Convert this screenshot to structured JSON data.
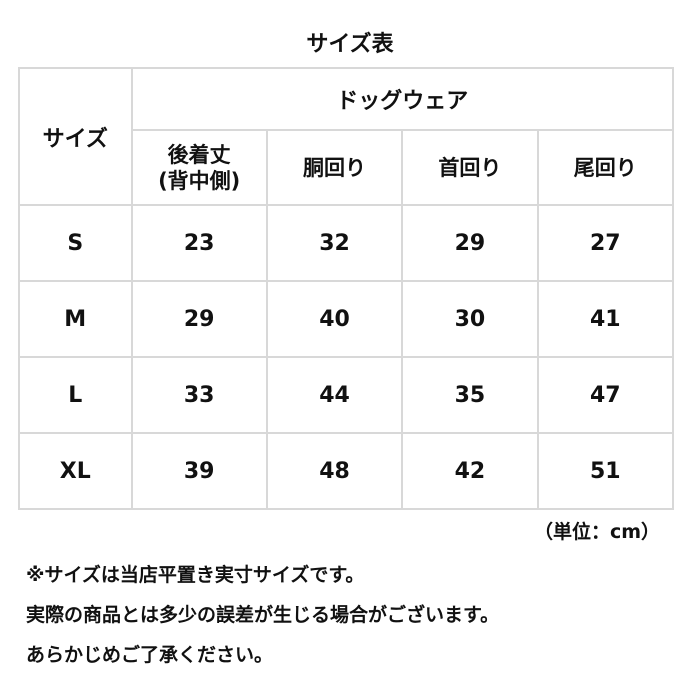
{
  "title": "サイズ表",
  "table": {
    "size_header": "サイズ",
    "group_header": "ドッグウェア",
    "columns": [
      "後着丈\n(背中側)",
      "胴回り",
      "首回り",
      "尾回り"
    ],
    "column_lines": [
      [
        "後着丈",
        "(背中側)"
      ],
      [
        "胴回り"
      ],
      [
        "首回り"
      ],
      [
        "尾回り"
      ]
    ],
    "rows": [
      {
        "size": "S",
        "values": [
          "23",
          "32",
          "29",
          "27"
        ]
      },
      {
        "size": "M",
        "values": [
          "29",
          "40",
          "30",
          "41"
        ]
      },
      {
        "size": "L",
        "values": [
          "33",
          "44",
          "35",
          "47"
        ]
      },
      {
        "size": "XL",
        "values": [
          "39",
          "48",
          "42",
          "51"
        ]
      }
    ]
  },
  "unit": "（単位：cm）",
  "notes": [
    "※サイズは当店平置き実寸サイズです。",
    "実際の商品とは多少の誤差が生じる場合がございます。",
    "あらかじめご了承ください。"
  ]
}
